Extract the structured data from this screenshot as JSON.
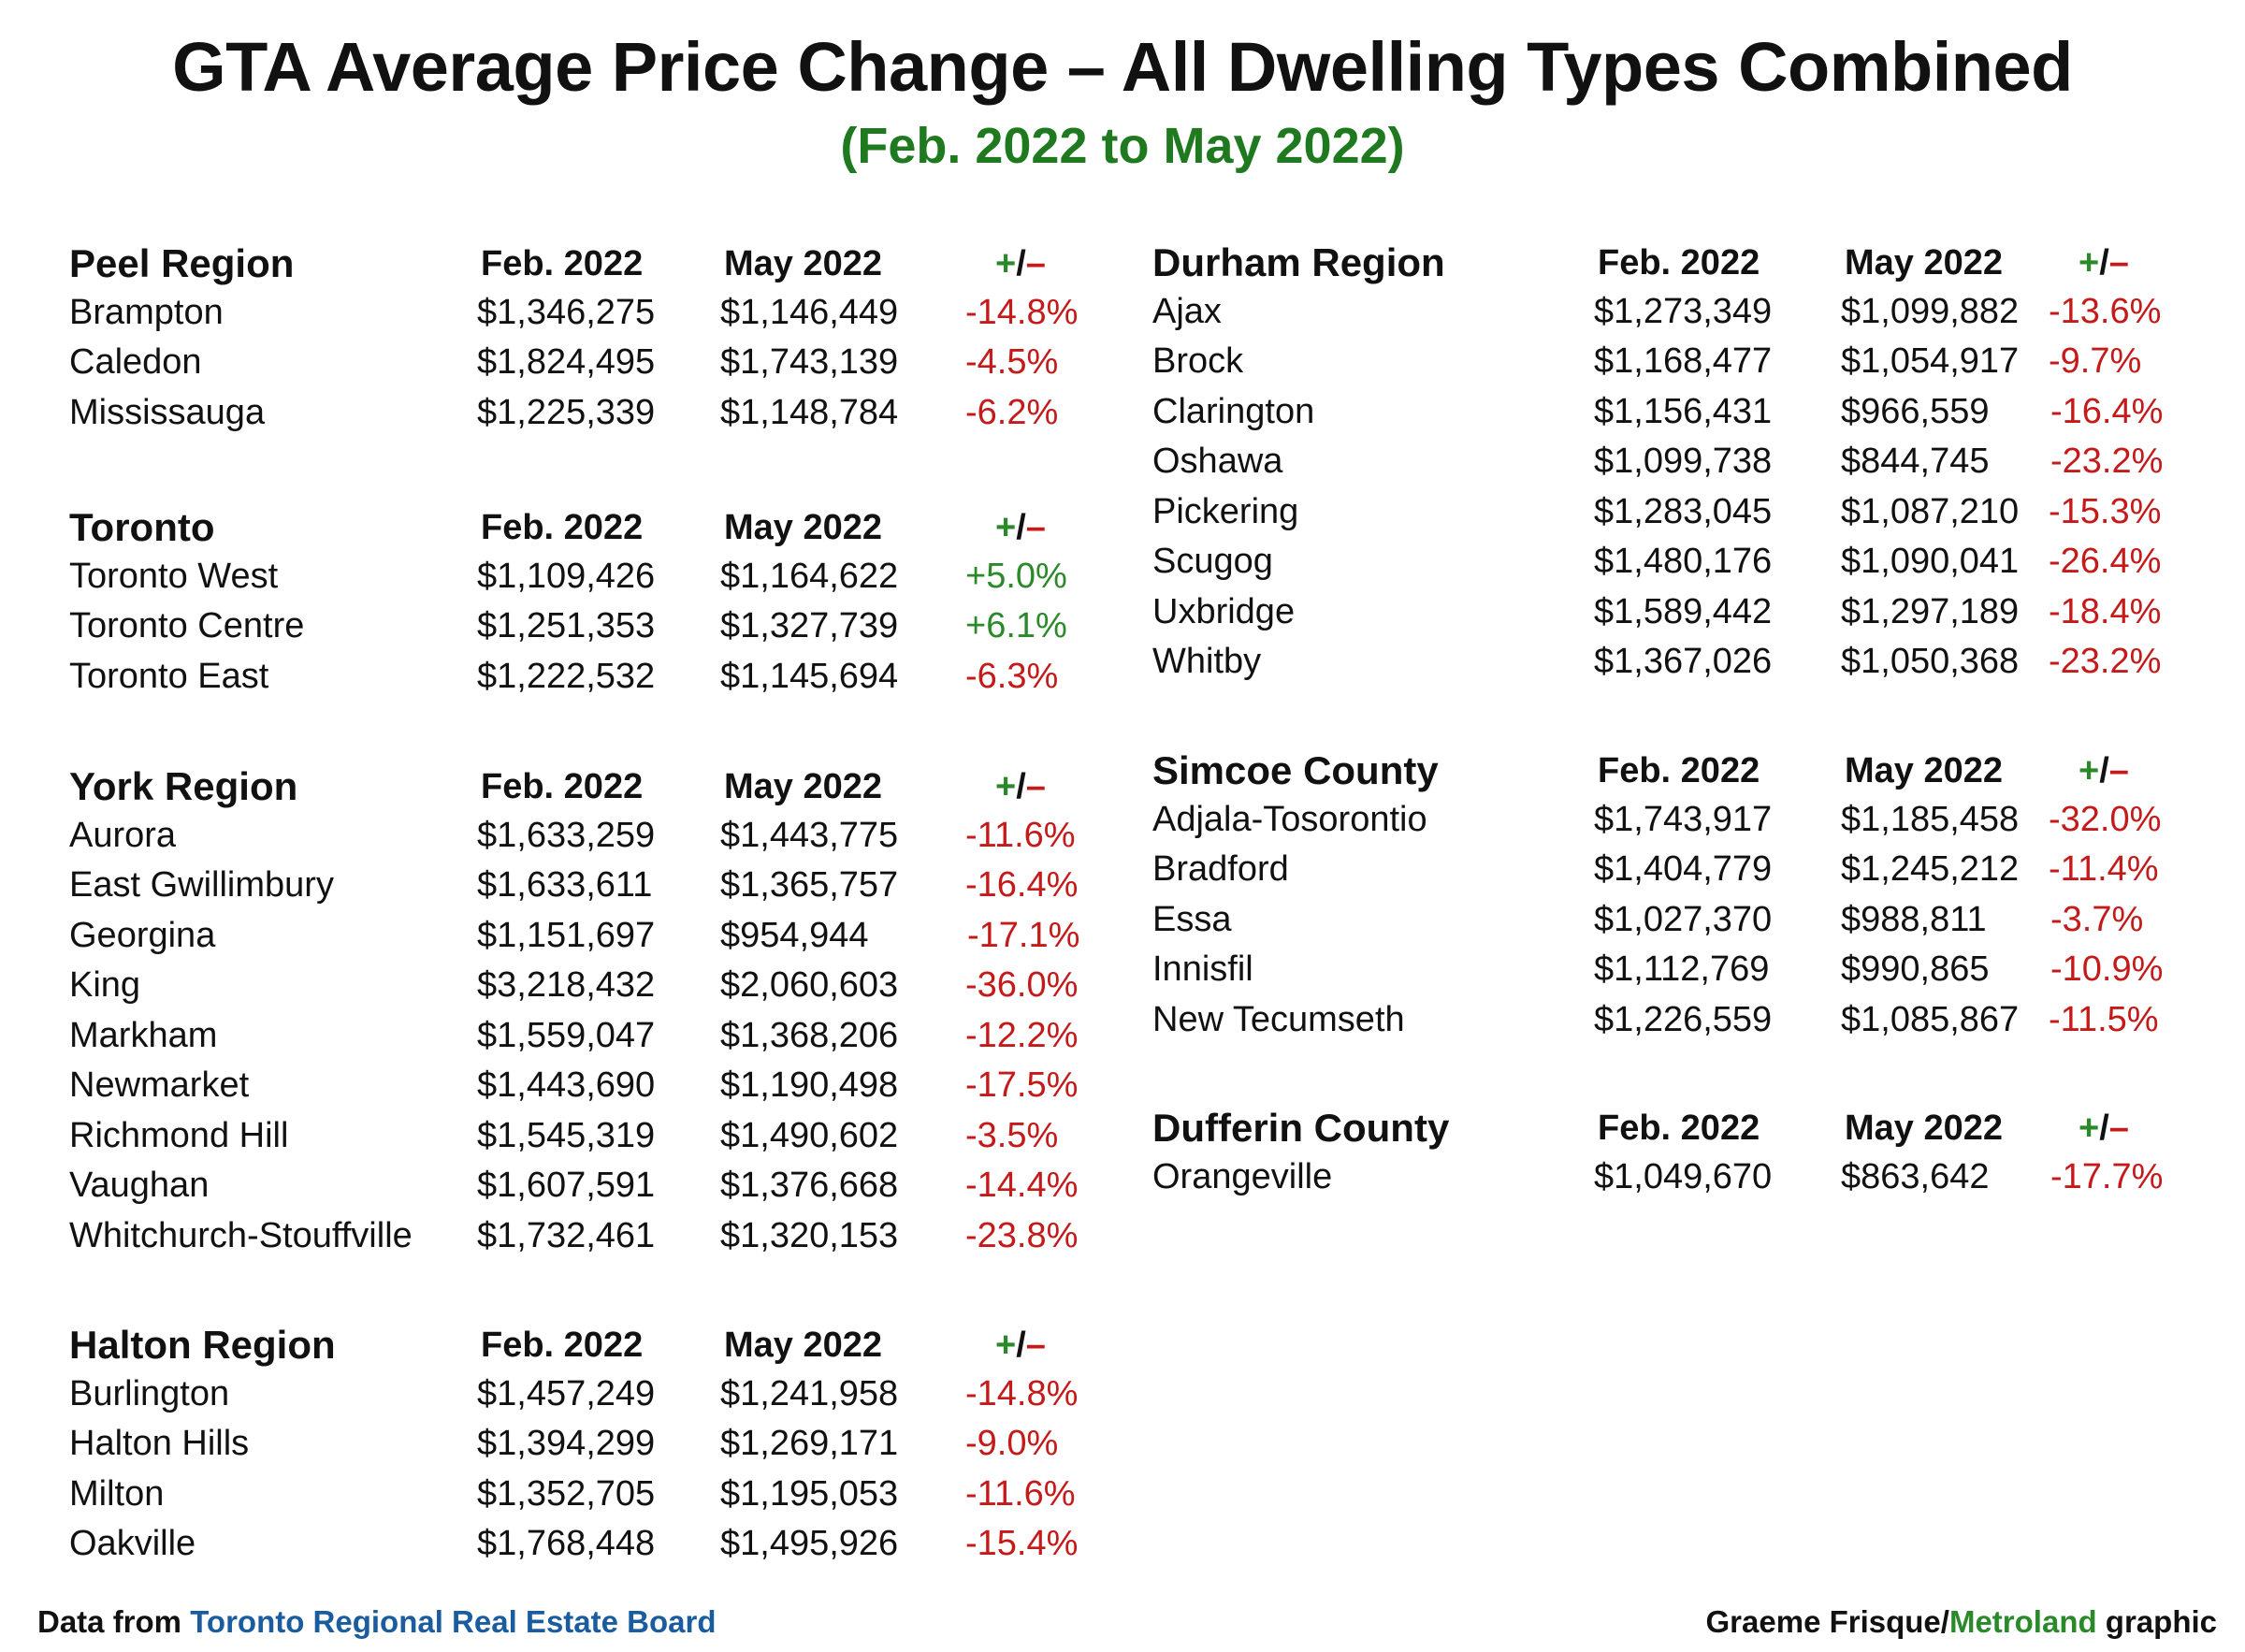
{
  "title": "GTA Average Price Change – All Dwelling Types Combined",
  "subtitle": "(Feb. 2022 to May 2022)",
  "col_labels": {
    "feb": "Feb. 2022",
    "may": "May 2022",
    "change_plus": "+",
    "change_slash": "/",
    "change_minus": "–"
  },
  "colors": {
    "negative": "#c41a1a",
    "positive": "#2a8a2a",
    "subtitle": "#1f7a1f",
    "source_link": "#1a5c9e"
  },
  "sections": [
    {
      "name": "Peel Region",
      "rows": [
        {
          "place": "Brampton",
          "feb": "$1,346,275",
          "may": "$1,146,449",
          "change": "-14.8%"
        },
        {
          "place": "Caledon",
          "feb": "$1,824,495",
          "may": "$1,743,139",
          "change": "-4.5%"
        },
        {
          "place": "Mississauga",
          "feb": "$1,225,339",
          "may": "$1,148,784",
          "change": "-6.2%"
        }
      ]
    },
    {
      "name": "Toronto",
      "rows": [
        {
          "place": "Toronto West",
          "feb": "$1,109,426",
          "may": "$1,164,622",
          "change": "+5.0%"
        },
        {
          "place": "Toronto Centre",
          "feb": "$1,251,353",
          "may": "$1,327,739",
          "change": "+6.1%"
        },
        {
          "place": "Toronto East",
          "feb": "$1,222,532",
          "may": "$1,145,694",
          "change": "-6.3%"
        }
      ]
    },
    {
      "name": "York Region",
      "rows": [
        {
          "place": "Aurora",
          "feb": "$1,633,259",
          "may": "$1,443,775",
          "change": "-11.6%"
        },
        {
          "place": "East Gwillimbury",
          "feb": "$1,633,611",
          "may": "$1,365,757",
          "change": "-16.4%"
        },
        {
          "place": "Georgina",
          "feb": "$1,151,697",
          "may": "$954,944",
          "change": "-17.1%"
        },
        {
          "place": "King",
          "feb": "$3,218,432",
          "may": "$2,060,603",
          "change": "-36.0%"
        },
        {
          "place": "Markham",
          "feb": "$1,559,047",
          "may": "$1,368,206",
          "change": "-12.2%"
        },
        {
          "place": "Newmarket",
          "feb": "$1,443,690",
          "may": "$1,190,498",
          "change": "-17.5%"
        },
        {
          "place": "Richmond Hill",
          "feb": "$1,545,319",
          "may": "$1,490,602",
          "change": "-3.5%"
        },
        {
          "place": "Vaughan",
          "feb": "$1,607,591",
          "may": "$1,376,668",
          "change": "-14.4%"
        },
        {
          "place": "Whitchurch-Stouffville",
          "feb": "$1,732,461",
          "may": "$1,320,153",
          "change": "-23.8%"
        }
      ]
    },
    {
      "name": "Halton Region",
      "rows": [
        {
          "place": "Burlington",
          "feb": "$1,457,249",
          "may": "$1,241,958",
          "change": "-14.8%"
        },
        {
          "place": "Halton Hills",
          "feb": "$1,394,299",
          "may": "$1,269,171",
          "change": "-9.0%"
        },
        {
          "place": "Milton",
          "feb": "$1,352,705",
          "may": "$1,195,053",
          "change": "-11.6%"
        },
        {
          "place": "Oakville",
          "feb": "$1,768,448",
          "may": "$1,495,926",
          "change": "-15.4%"
        }
      ]
    },
    {
      "name": "Durham Region",
      "rows": [
        {
          "place": "Ajax",
          "feb": "$1,273,349",
          "may": "$1,099,882",
          "change": "-13.6%"
        },
        {
          "place": "Brock",
          "feb": "$1,168,477",
          "may": "$1,054,917",
          "change": "-9.7%"
        },
        {
          "place": "Clarington",
          "feb": "$1,156,431",
          "may": "$966,559",
          "change": "-16.4%"
        },
        {
          "place": "Oshawa",
          "feb": "$1,099,738",
          "may": "$844,745",
          "change": "-23.2%"
        },
        {
          "place": "Pickering",
          "feb": "$1,283,045",
          "may": "$1,087,210",
          "change": "-15.3%"
        },
        {
          "place": "Scugog",
          "feb": "$1,480,176",
          "may": "$1,090,041",
          "change": "-26.4%"
        },
        {
          "place": "Uxbridge",
          "feb": "$1,589,442",
          "may": "$1,297,189",
          "change": "-18.4%"
        },
        {
          "place": "Whitby",
          "feb": "$1,367,026",
          "may": "$1,050,368",
          "change": "-23.2%"
        }
      ]
    },
    {
      "name": "Simcoe County",
      "rows": [
        {
          "place": "Adjala-Tosorontio",
          "feb": "$1,743,917",
          "may": "$1,185,458",
          "change": "-32.0%"
        },
        {
          "place": "Bradford",
          "feb": "$1,404,779",
          "may": "$1,245,212",
          "change": "-11.4%"
        },
        {
          "place": "Essa",
          "feb": "$1,027,370",
          "may": "$988,811",
          "change": "-3.7%"
        },
        {
          "place": "Innisfil",
          "feb": "$1,112,769",
          "may": "$990,865",
          "change": "-10.9%"
        },
        {
          "place": "New Tecumseth",
          "feb": "$1,226,559",
          "may": "$1,085,867",
          "change": "-11.5%"
        }
      ]
    },
    {
      "name": "Dufferin County",
      "rows": [
        {
          "place": "Orangeville",
          "feb": "$1,049,670",
          "may": "$863,642",
          "change": "-17.7%"
        }
      ]
    }
  ],
  "footer": {
    "source_prefix": "Data from ",
    "source_name": "Toronto Regional Real Estate Board",
    "credit_name": "Graeme Frisque/",
    "credit_outlet": "Metroland",
    "credit_suffix": " graphic"
  }
}
